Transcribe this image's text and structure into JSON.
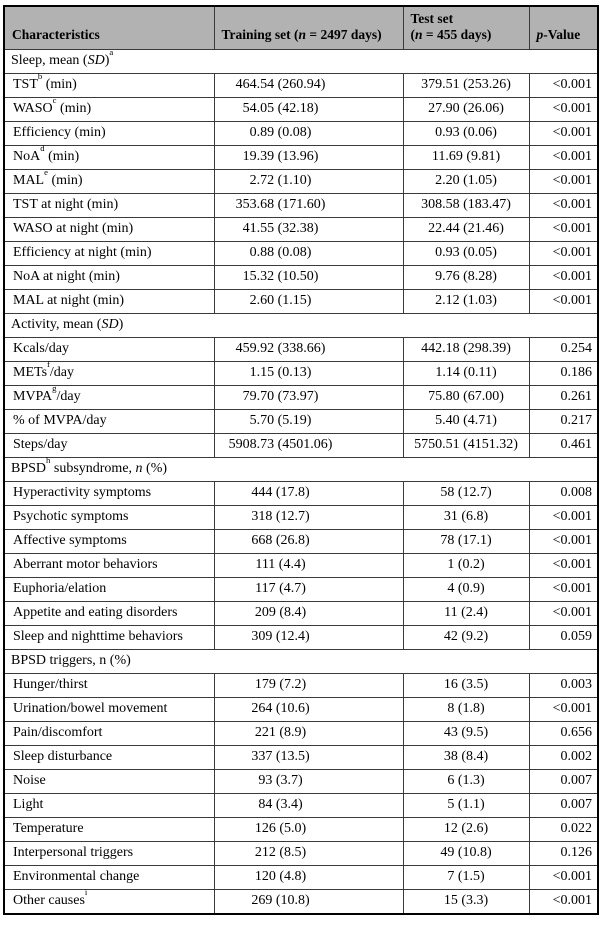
{
  "style": {
    "header_bg": "#b2b2b2",
    "border_color": "#000000"
  },
  "table": {
    "header": [
      {
        "name": "characteristics",
        "parts": [
          {
            "t": "Characteristics"
          }
        ]
      },
      {
        "name": "training-set",
        "parts": [
          {
            "t": "Training set ("
          },
          {
            "t": "n",
            "i": true
          },
          {
            "t": " = 2497 days)"
          }
        ]
      },
      {
        "name": "test-set",
        "parts": [
          {
            "t": "Test set"
          },
          {
            "br": true
          },
          {
            "t": "("
          },
          {
            "t": "n",
            "i": true
          },
          {
            "t": " = 455 days)"
          }
        ]
      },
      {
        "name": "p-value",
        "parts": [
          {
            "t": "p",
            "i": true
          },
          {
            "t": "-Value"
          }
        ]
      }
    ],
    "sections": [
      {
        "title": [
          {
            "t": "Sleep, mean ("
          },
          {
            "t": "SD",
            "i": true
          },
          {
            "t": ")"
          },
          {
            "t": "a",
            "sup": true
          }
        ],
        "rows": [
          {
            "label": [
              {
                "t": "TST"
              },
              {
                "t": "b",
                "sup": true
              },
              {
                "t": " (min)"
              }
            ],
            "train": "464.54 (260.94)",
            "test": "379.51 (253.26)",
            "p": "<0.001"
          },
          {
            "label": [
              {
                "t": "WASO"
              },
              {
                "t": "c",
                "sup": true
              },
              {
                "t": " (min)"
              }
            ],
            "train": "54.05 (42.18)",
            "test": "27.90 (26.06)",
            "p": "<0.001"
          },
          {
            "label": [
              {
                "t": "Efficiency (min)"
              }
            ],
            "train": "0.89 (0.08)",
            "test": "0.93 (0.06)",
            "p": "<0.001"
          },
          {
            "label": [
              {
                "t": "NoA"
              },
              {
                "t": "d",
                "sup": true
              },
              {
                "t": " (min)"
              }
            ],
            "train": "19.39 (13.96)",
            "test": "11.69 (9.81)",
            "p": "<0.001"
          },
          {
            "label": [
              {
                "t": "MAL"
              },
              {
                "t": "e",
                "sup": true
              },
              {
                "t": " (min)"
              }
            ],
            "train": "2.72 (1.10)",
            "test": "2.20 (1.05)",
            "p": "<0.001"
          },
          {
            "label": [
              {
                "t": "TST at night (min)"
              }
            ],
            "train": "353.68 (171.60)",
            "test": "308.58 (183.47)",
            "p": "<0.001"
          },
          {
            "label": [
              {
                "t": "WASO at night (min)"
              }
            ],
            "train": "41.55 (32.38)",
            "test": "22.44 (21.46)",
            "p": "<0.001"
          },
          {
            "label": [
              {
                "t": "Efficiency at night (min)"
              }
            ],
            "train": "0.88 (0.08)",
            "test": "0.93 (0.05)",
            "p": "<0.001"
          },
          {
            "label": [
              {
                "t": "NoA at night (min)"
              }
            ],
            "train": "15.32 (10.50)",
            "test": "9.76 (8.28)",
            "p": "<0.001"
          },
          {
            "label": [
              {
                "t": "MAL at night (min)"
              }
            ],
            "train": "2.60 (1.15)",
            "test": "2.12 (1.03)",
            "p": "<0.001"
          }
        ]
      },
      {
        "title": [
          {
            "t": "Activity, mean ("
          },
          {
            "t": "SD",
            "i": true
          },
          {
            "t": ")"
          }
        ],
        "rows": [
          {
            "label": [
              {
                "t": "Kcals/day"
              }
            ],
            "train": "459.92 (338.66)",
            "test": "442.18 (298.39)",
            "p": "0.254"
          },
          {
            "label": [
              {
                "t": "METs"
              },
              {
                "t": "f",
                "sup": true
              },
              {
                "t": "/day"
              }
            ],
            "train": "1.15 (0.13)",
            "test": "1.14 (0.11)",
            "p": "0.186"
          },
          {
            "label": [
              {
                "t": "MVPA"
              },
              {
                "t": "g",
                "sup": true
              },
              {
                "t": "/day"
              }
            ],
            "train": "79.70 (73.97)",
            "test": "75.80 (67.00)",
            "p": "0.261"
          },
          {
            "label": [
              {
                "t": "% of MVPA/day"
              }
            ],
            "train": "5.70 (5.19)",
            "test": "5.40 (4.71)",
            "p": "0.217"
          },
          {
            "label": [
              {
                "t": "Steps/day"
              }
            ],
            "train": "5908.73 (4501.06)",
            "test": "5750.51 (4151.32)",
            "p": "0.461"
          }
        ]
      },
      {
        "title": [
          {
            "t": "BPSD"
          },
          {
            "t": "h",
            "sup": true
          },
          {
            "t": " subsyndrome, "
          },
          {
            "t": "n",
            "i": true
          },
          {
            "t": " (%)"
          }
        ],
        "rows": [
          {
            "label": [
              {
                "t": "Hyperactivity symptoms"
              }
            ],
            "train": "444 (17.8)",
            "test": "58 (12.7)",
            "p": "0.008"
          },
          {
            "label": [
              {
                "t": "Psychotic symptoms"
              }
            ],
            "train": "318 (12.7)",
            "test": "31 (6.8)",
            "p": "<0.001"
          },
          {
            "label": [
              {
                "t": "Affective symptoms"
              }
            ],
            "train": "668 (26.8)",
            "test": "78 (17.1)",
            "p": "<0.001"
          },
          {
            "label": [
              {
                "t": "Aberrant motor behaviors"
              }
            ],
            "train": "111 (4.4)",
            "test": "1 (0.2)",
            "p": "<0.001"
          },
          {
            "label": [
              {
                "t": "Euphoria/elation"
              }
            ],
            "train": "117 (4.7)",
            "test": "4 (0.9)",
            "p": "<0.001"
          },
          {
            "label": [
              {
                "t": "Appetite and eating disorders"
              }
            ],
            "train": "209 (8.4)",
            "test": "11 (2.4)",
            "p": "<0.001"
          },
          {
            "label": [
              {
                "t": "Sleep and nighttime behaviors"
              }
            ],
            "train": "309 (12.4)",
            "test": "42 (9.2)",
            "p": "0.059"
          }
        ]
      },
      {
        "title": [
          {
            "t": "BPSD triggers, n (%)"
          }
        ],
        "rows": [
          {
            "label": [
              {
                "t": "Hunger/thirst"
              }
            ],
            "train": "179 (7.2)",
            "test": "16 (3.5)",
            "p": "0.003"
          },
          {
            "label": [
              {
                "t": "Urination/bowel movement"
              }
            ],
            "train": "264 (10.6)",
            "test": "8 (1.8)",
            "p": "<0.001"
          },
          {
            "label": [
              {
                "t": "Pain/discomfort"
              }
            ],
            "train": "221 (8.9)",
            "test": "43 (9.5)",
            "p": "0.656"
          },
          {
            "label": [
              {
                "t": "Sleep disturbance"
              }
            ],
            "train": "337 (13.5)",
            "test": "38 (8.4)",
            "p": "0.002"
          },
          {
            "label": [
              {
                "t": "Noise"
              }
            ],
            "train": "93 (3.7)",
            "test": "6 (1.3)",
            "p": "0.007"
          },
          {
            "label": [
              {
                "t": "Light"
              }
            ],
            "train": "84 (3.4)",
            "test": "5 (1.1)",
            "p": "0.007"
          },
          {
            "label": [
              {
                "t": "Temperature"
              }
            ],
            "train": "126 (5.0)",
            "test": "12 (2.6)",
            "p": "0.022"
          },
          {
            "label": [
              {
                "t": "Interpersonal triggers"
              }
            ],
            "train": "212 (8.5)",
            "test": "49 (10.8)",
            "p": "0.126"
          },
          {
            "label": [
              {
                "t": "Environmental change"
              }
            ],
            "train": "120 (4.8)",
            "test": "7 (1.5)",
            "p": "<0.001"
          },
          {
            "label": [
              {
                "t": "Other causes"
              },
              {
                "t": "i",
                "sup": true
              }
            ],
            "train": "269 (10.8)",
            "test": "15 (3.3)",
            "p": "<0.001"
          }
        ]
      }
    ]
  }
}
